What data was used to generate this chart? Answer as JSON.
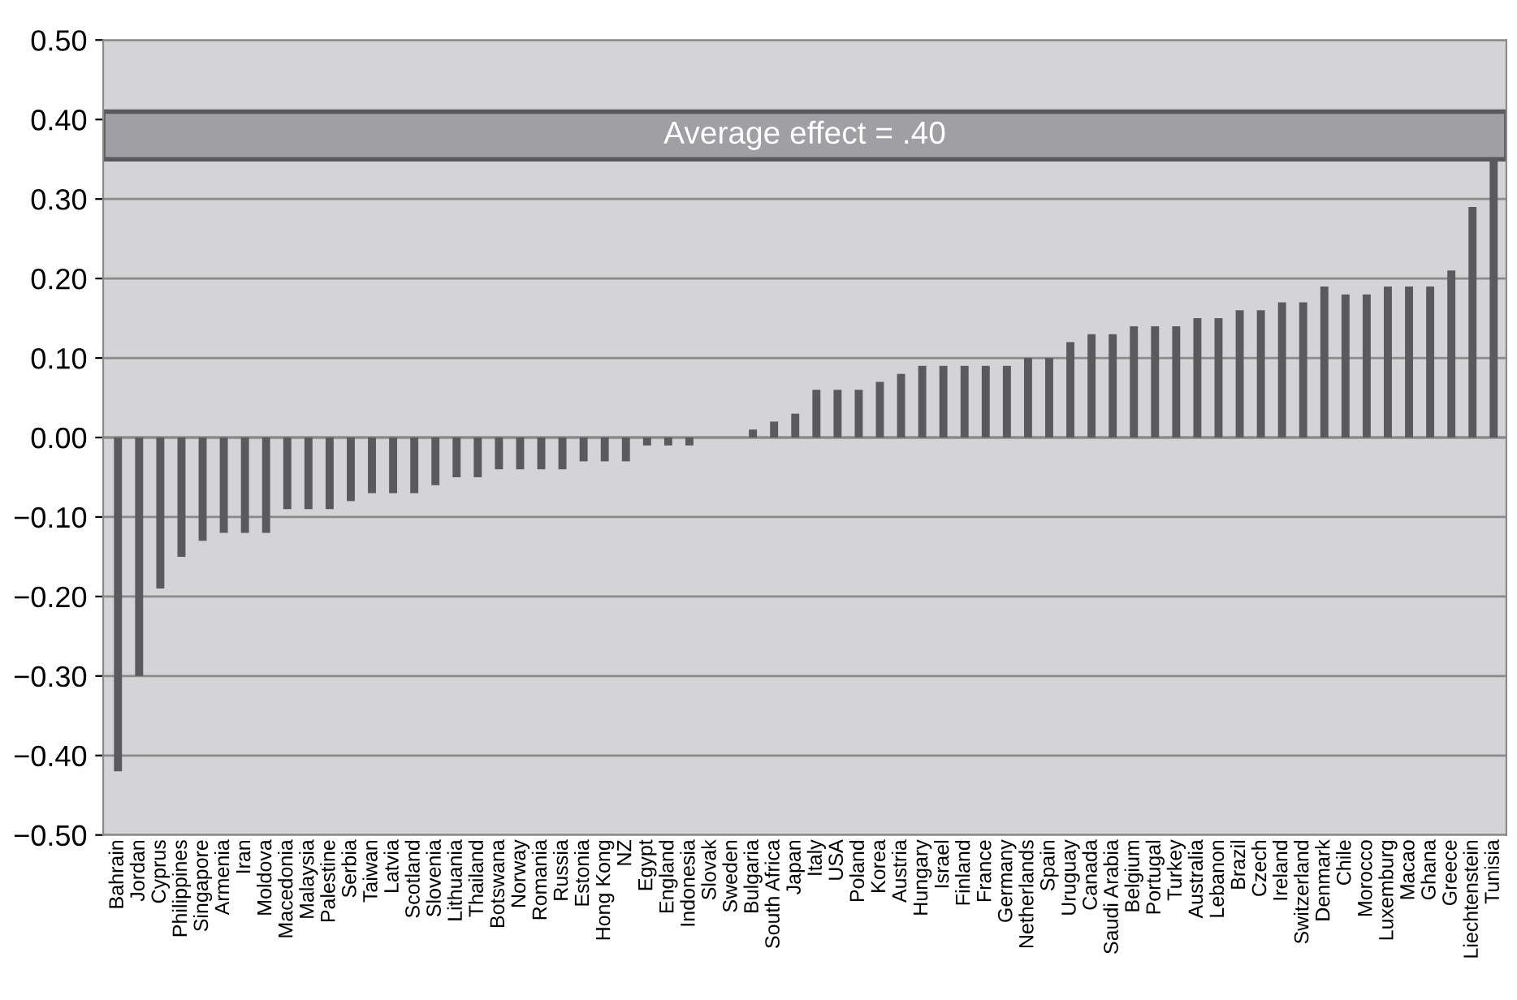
{
  "chart_data": {
    "type": "bar",
    "categories": [
      "Bahrain",
      "Jordan",
      "Cyprus",
      "Philippines",
      "Singapore",
      "Armenia",
      "Iran",
      "Moldova",
      "Macedonia",
      "Malaysia",
      "Palestine",
      "Serbia",
      "Taiwan",
      "Latvia",
      "Scotland",
      "Slovenia",
      "Lithuania",
      "Thailand",
      "Botswana",
      "Norway",
      "Romania",
      "Russia",
      "Estonia",
      "Hong Kong",
      "NZ",
      "Egypt",
      "England",
      "Indonesia",
      "Slovak",
      "Sweden",
      "Bulgaria",
      "South Africa",
      "Japan",
      "Italy",
      "USA",
      "Poland",
      "Korea",
      "Austria",
      "Hungary",
      "Israel",
      "Finland",
      "France",
      "Germany",
      "Netherlands",
      "Spain",
      "Uruguay",
      "Canada",
      "Saudi Arabia",
      "Belgium",
      "Portugal",
      "Turkey",
      "Australia",
      "Lebanon",
      "Brazil",
      "Czech",
      "Ireland",
      "Switzerland",
      "Denmark",
      "Chile",
      "Morocco",
      "Luxemburg",
      "Macao",
      "Ghana",
      "Greece",
      "Liechtenstein",
      "Tunisia"
    ],
    "values": [
      -0.42,
      -0.3,
      -0.19,
      -0.15,
      -0.13,
      -0.12,
      -0.12,
      -0.12,
      -0.09,
      -0.09,
      -0.09,
      -0.08,
      -0.07,
      -0.07,
      -0.07,
      -0.06,
      -0.05,
      -0.05,
      -0.04,
      -0.04,
      -0.04,
      -0.04,
      -0.03,
      -0.03,
      -0.03,
      -0.01,
      -0.01,
      -0.01,
      0,
      0,
      0.01,
      0.02,
      0.03,
      0.06,
      0.06,
      0.06,
      0.07,
      0.08,
      0.09,
      0.09,
      0.09,
      0.09,
      0.09,
      0.1,
      0.1,
      0.12,
      0.13,
      0.13,
      0.14,
      0.14,
      0.14,
      0.15,
      0.15,
      0.16,
      0.16,
      0.17,
      0.17,
      0.19,
      0.18,
      0.18,
      0.19,
      0.19,
      0.19,
      0.21,
      0.29,
      0.35
    ],
    "color": "#5a5a5c",
    "ylim": [
      -0.5,
      0.5
    ],
    "yticks": [
      {
        "value": -0.5,
        "label": "−0.50"
      },
      {
        "value": -0.4,
        "label": "−0.40"
      },
      {
        "value": -0.3,
        "label": "−0.30"
      },
      {
        "value": -0.2,
        "label": "−0.20"
      },
      {
        "value": -0.1,
        "label": "−0.10"
      },
      {
        "value": 0,
        "label": "0.00"
      },
      {
        "value": 0.1,
        "label": "0.10"
      },
      {
        "value": 0.2,
        "label": "0.20"
      },
      {
        "value": 0.3,
        "label": "0.30"
      },
      {
        "value": 0.4,
        "label": "0.40"
      },
      {
        "value": 0.5,
        "label": "0.50"
      }
    ],
    "bands": [
      {
        "axis": "y",
        "from": 0.35,
        "to": 0.41,
        "label": "Average effect = .40",
        "color": "#a0a0a4"
      }
    ],
    "grid": "y"
  }
}
